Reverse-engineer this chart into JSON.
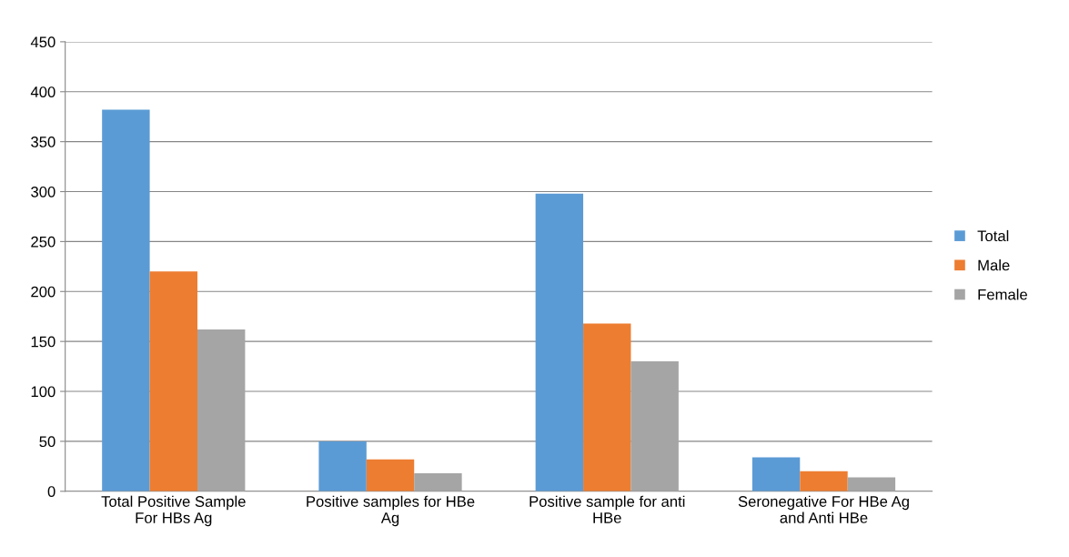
{
  "chart_data": {
    "type": "bar",
    "categories": [
      "Total Positive Sample For HBs Ag",
      "Positive samples for HBe Ag",
      "Positive sample for anti HBe",
      "Seronegative For HBe Ag and Anti HBe"
    ],
    "series": [
      {
        "name": "Total",
        "color": "#5b9bd5",
        "values": [
          382,
          50,
          298,
          34
        ]
      },
      {
        "name": "Male",
        "color": "#ed7d31",
        "values": [
          220,
          32,
          168,
          20
        ]
      },
      {
        "name": "Female",
        "color": "#a5a5a5",
        "values": [
          162,
          18,
          130,
          14
        ]
      }
    ],
    "ylim": [
      0,
      450
    ],
    "yticks": [
      0,
      50,
      100,
      150,
      200,
      250,
      300,
      350,
      400,
      450
    ],
    "grid": "y",
    "legend": "right"
  }
}
